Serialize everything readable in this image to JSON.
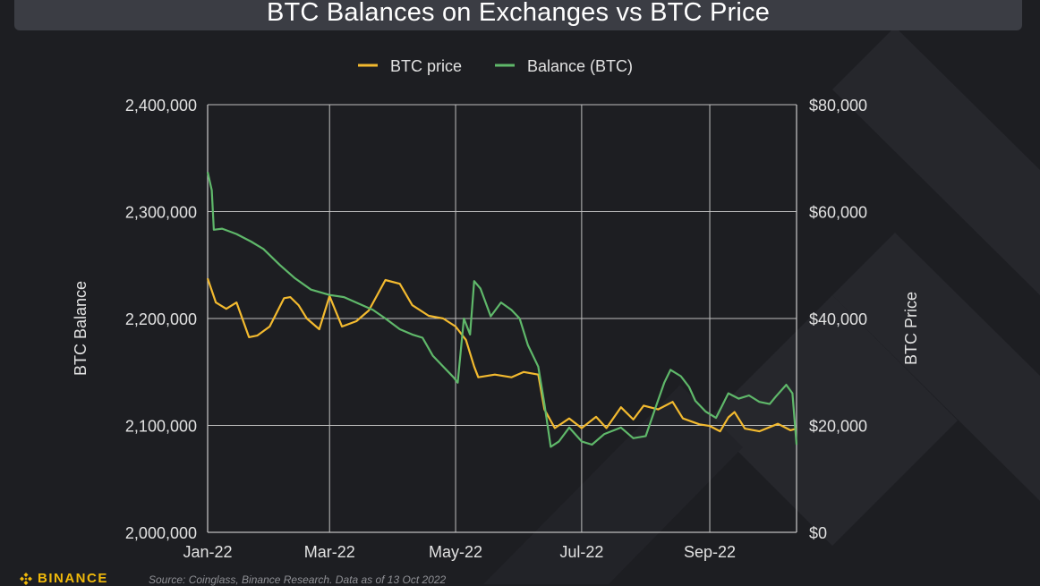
{
  "chart_data": {
    "type": "line",
    "title": "BTC Balances on Exchanges vs BTC Price",
    "ylabel": "BTC Balance",
    "y2label": "BTC Price",
    "ylim": [
      2000000,
      2400000
    ],
    "y2lim": [
      0,
      80000
    ],
    "xlim": [
      "2022-01-01",
      "2022-10-13"
    ],
    "x_ticks": [
      {
        "date": "2022-01-01",
        "label": "Jan-22"
      },
      {
        "date": "2022-03-01",
        "label": "Mar-22"
      },
      {
        "date": "2022-05-01",
        "label": "May-22"
      },
      {
        "date": "2022-07-01",
        "label": "Jul-22"
      },
      {
        "date": "2022-09-01",
        "label": "Sep-22"
      }
    ],
    "y_ticks": [
      "2,000,000",
      "2,100,000",
      "2,200,000",
      "2,300,000",
      "2,400,000"
    ],
    "y2_ticks": [
      "$0",
      "$20,000",
      "$40,000",
      "$60,000",
      "$80,000"
    ],
    "grid": true,
    "legend_position": "top-center",
    "series": [
      {
        "name": "BTC price",
        "axis": "right",
        "color": "#f3ba2f",
        "points": [
          [
            "2022-01-01",
            47500
          ],
          [
            "2022-01-05",
            43000
          ],
          [
            "2022-01-10",
            41800
          ],
          [
            "2022-01-15",
            43000
          ],
          [
            "2022-01-21",
            36500
          ],
          [
            "2022-01-25",
            36800
          ],
          [
            "2022-01-31",
            38500
          ],
          [
            "2022-02-07",
            43800
          ],
          [
            "2022-02-10",
            44000
          ],
          [
            "2022-02-14",
            42500
          ],
          [
            "2022-02-18",
            40000
          ],
          [
            "2022-02-24",
            38000
          ],
          [
            "2022-03-01",
            44200
          ],
          [
            "2022-03-07",
            38500
          ],
          [
            "2022-03-14",
            39500
          ],
          [
            "2022-03-20",
            41500
          ],
          [
            "2022-03-28",
            47200
          ],
          [
            "2022-04-04",
            46500
          ],
          [
            "2022-04-10",
            42500
          ],
          [
            "2022-04-18",
            40500
          ],
          [
            "2022-04-25",
            40000
          ],
          [
            "2022-05-01",
            38500
          ],
          [
            "2022-05-06",
            36000
          ],
          [
            "2022-05-10",
            31000
          ],
          [
            "2022-05-12",
            29000
          ],
          [
            "2022-05-20",
            29500
          ],
          [
            "2022-05-28",
            29000
          ],
          [
            "2022-06-03",
            30000
          ],
          [
            "2022-06-10",
            29500
          ],
          [
            "2022-06-13",
            23000
          ],
          [
            "2022-06-18",
            19500
          ],
          [
            "2022-06-25",
            21300
          ],
          [
            "2022-07-01",
            19500
          ],
          [
            "2022-07-08",
            21600
          ],
          [
            "2022-07-13",
            19500
          ],
          [
            "2022-07-20",
            23400
          ],
          [
            "2022-07-26",
            21100
          ],
          [
            "2022-07-31",
            23700
          ],
          [
            "2022-08-07",
            23000
          ],
          [
            "2022-08-14",
            24400
          ],
          [
            "2022-08-19",
            21300
          ],
          [
            "2022-08-27",
            20200
          ],
          [
            "2022-09-01",
            19900
          ],
          [
            "2022-09-06",
            18900
          ],
          [
            "2022-09-10",
            21500
          ],
          [
            "2022-09-13",
            22500
          ],
          [
            "2022-09-18",
            19400
          ],
          [
            "2022-09-25",
            18900
          ],
          [
            "2022-10-04",
            20300
          ],
          [
            "2022-10-10",
            19100
          ],
          [
            "2022-10-13",
            19400
          ]
        ]
      },
      {
        "name": "Balance (BTC)",
        "axis": "left",
        "color": "#5fb86a",
        "points": [
          [
            "2022-01-01",
            2337000
          ],
          [
            "2022-01-03",
            2320000
          ],
          [
            "2022-01-04",
            2283000
          ],
          [
            "2022-01-08",
            2284000
          ],
          [
            "2022-01-15",
            2279000
          ],
          [
            "2022-01-22",
            2272000
          ],
          [
            "2022-01-28",
            2265000
          ],
          [
            "2022-02-05",
            2250000
          ],
          [
            "2022-02-12",
            2238000
          ],
          [
            "2022-02-20",
            2227000
          ],
          [
            "2022-03-01",
            2222000
          ],
          [
            "2022-03-08",
            2220000
          ],
          [
            "2022-03-15",
            2214000
          ],
          [
            "2022-03-22",
            2208000
          ],
          [
            "2022-03-28",
            2200000
          ],
          [
            "2022-04-04",
            2190000
          ],
          [
            "2022-04-10",
            2185000
          ],
          [
            "2022-04-15",
            2182000
          ],
          [
            "2022-04-20",
            2165000
          ],
          [
            "2022-04-25",
            2155000
          ],
          [
            "2022-04-30",
            2145000
          ],
          [
            "2022-05-02",
            2140000
          ],
          [
            "2022-05-05",
            2200000
          ],
          [
            "2022-05-08",
            2185000
          ],
          [
            "2022-05-10",
            2235000
          ],
          [
            "2022-05-13",
            2228000
          ],
          [
            "2022-05-18",
            2202000
          ],
          [
            "2022-05-23",
            2215000
          ],
          [
            "2022-05-28",
            2208000
          ],
          [
            "2022-06-01",
            2200000
          ],
          [
            "2022-06-05",
            2175000
          ],
          [
            "2022-06-10",
            2155000
          ],
          [
            "2022-06-13",
            2120000
          ],
          [
            "2022-06-16",
            2080000
          ],
          [
            "2022-06-20",
            2085000
          ],
          [
            "2022-06-25",
            2098000
          ],
          [
            "2022-07-01",
            2085000
          ],
          [
            "2022-07-06",
            2082000
          ],
          [
            "2022-07-12",
            2092000
          ],
          [
            "2022-07-20",
            2098000
          ],
          [
            "2022-07-26",
            2088000
          ],
          [
            "2022-08-01",
            2090000
          ],
          [
            "2022-08-06",
            2118000
          ],
          [
            "2022-08-10",
            2140000
          ],
          [
            "2022-08-13",
            2152000
          ],
          [
            "2022-08-18",
            2146000
          ],
          [
            "2022-08-22",
            2136000
          ],
          [
            "2022-08-25",
            2123000
          ],
          [
            "2022-08-30",
            2113000
          ],
          [
            "2022-09-04",
            2107000
          ],
          [
            "2022-09-10",
            2130000
          ],
          [
            "2022-09-15",
            2125000
          ],
          [
            "2022-09-20",
            2128000
          ],
          [
            "2022-09-25",
            2122000
          ],
          [
            "2022-09-30",
            2120000
          ],
          [
            "2022-10-03",
            2127000
          ],
          [
            "2022-10-08",
            2138000
          ],
          [
            "2022-10-11",
            2130000
          ],
          [
            "2022-10-13",
            2082000
          ]
        ]
      }
    ]
  },
  "footer": {
    "brand": "BINANCE",
    "source": "Source: Coinglass, Binance Research. Data as of 13 Oct 2022"
  },
  "colors": {
    "background": "#1d1e22",
    "title_bar": "#3b3d44",
    "price_line": "#f3ba2f",
    "balance_line": "#5fb86a",
    "grid": "#bfbfbf",
    "brand": "#f0b90b"
  }
}
